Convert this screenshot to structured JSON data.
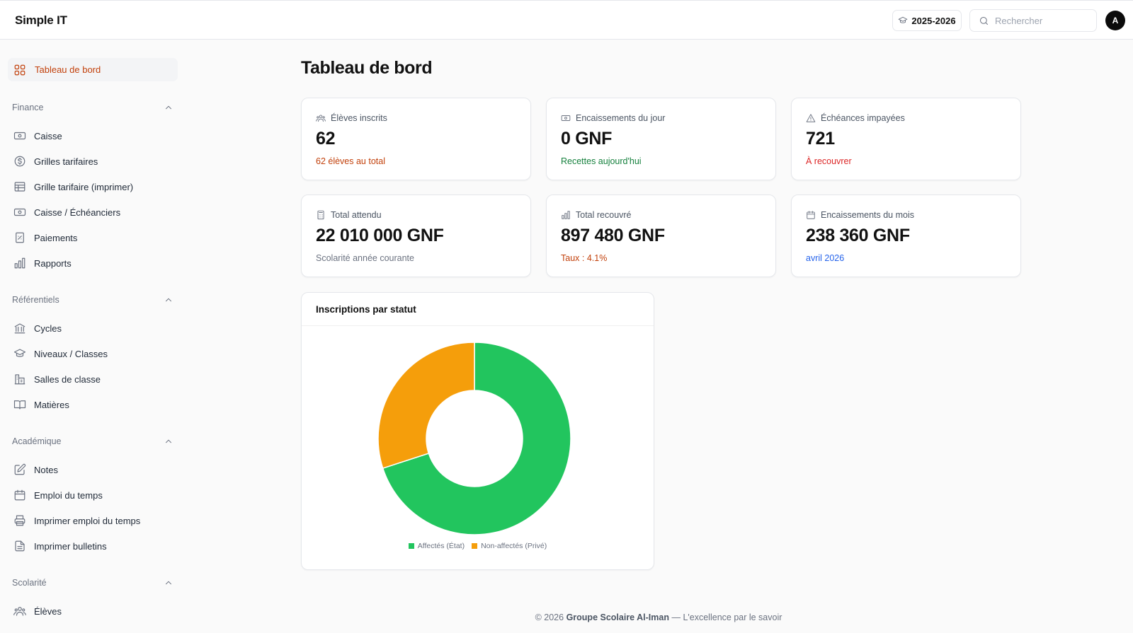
{
  "app": {
    "brand": "Simple IT"
  },
  "header": {
    "year_label": "2025-2026",
    "search_placeholder": "Rechercher",
    "avatar_initial": "A"
  },
  "sidebar": {
    "active_item": "Tableau de bord",
    "groups": [
      {
        "title": "Finance",
        "items": [
          "Caisse",
          "Grilles tarifaires",
          "Grille tarifaire (imprimer)",
          "Caisse / Échéanciers",
          "Paiements",
          "Rapports"
        ]
      },
      {
        "title": "Référentiels",
        "items": [
          "Cycles",
          "Niveaux / Classes",
          "Salles de classe",
          "Matières"
        ]
      },
      {
        "title": "Académique",
        "items": [
          "Notes",
          "Emploi du temps",
          "Imprimer emploi du temps",
          "Imprimer bulletins"
        ]
      },
      {
        "title": "Scolarité",
        "items": [
          "Élèves"
        ]
      }
    ]
  },
  "main": {
    "title": "Tableau de bord",
    "cards": [
      {
        "label": "Élèves inscrits",
        "value": "62",
        "sub": "62 élèves au total",
        "sub_color": "#c2410c",
        "icon": "users-icon"
      },
      {
        "label": "Encaissements du jour",
        "value": "0 GNF",
        "sub": "Recettes aujourd'hui",
        "sub_color": "#15803d",
        "icon": "banknote-icon"
      },
      {
        "label": "Échéances impayées",
        "value": "721",
        "sub": "À recouvrer",
        "sub_color": "#dc2626",
        "icon": "alert-triangle-icon"
      },
      {
        "label": "Total attendu",
        "value": "22 010 000 GNF",
        "sub": "Scolarité année courante",
        "sub_color": "#6b7280",
        "icon": "calculator-icon"
      },
      {
        "label": "Total recouvré",
        "value": "897 480 GNF",
        "sub": "Taux : 4.1%",
        "sub_color": "#c2410c",
        "icon": "bar-chart-icon"
      },
      {
        "label": "Encaissements du mois",
        "value": "238 360 GNF",
        "sub": "avril 2026",
        "sub_color": "#2563eb",
        "icon": "calendar-icon"
      }
    ]
  },
  "chart_data": {
    "type": "pie",
    "title": "Inscriptions par statut",
    "donut": true,
    "categories": [
      "Affectés (État)",
      "Non-affectés (Privé)"
    ],
    "values": [
      70,
      30
    ],
    "colors": [
      "#22c55e",
      "#f59e0b"
    ],
    "legend": "bottom"
  },
  "footer": {
    "copyright": "© 2026",
    "org": "Groupe Scolaire Al-Iman",
    "tagline": "— L'excellence par le savoir"
  }
}
